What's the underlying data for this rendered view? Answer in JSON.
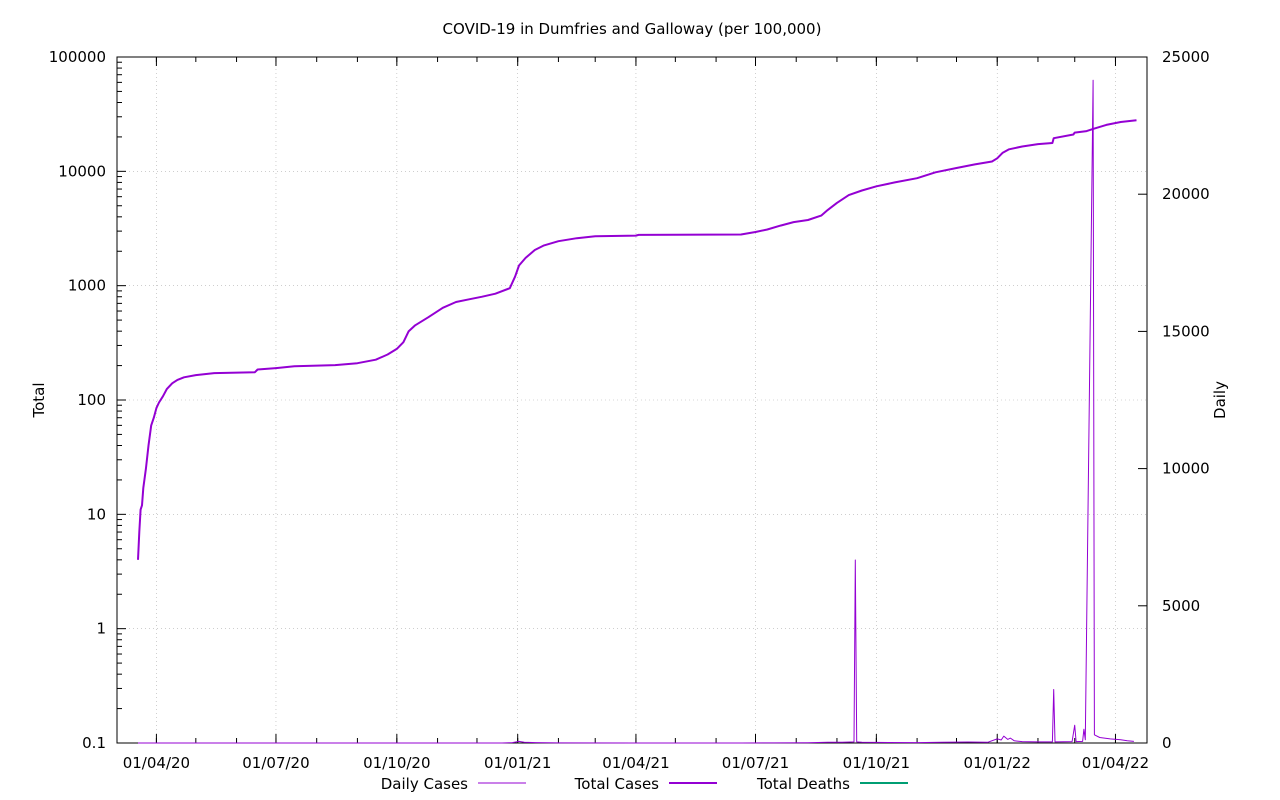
{
  "chart_data": {
    "type": "line",
    "title": "COVID-19 in Dumfries and Galloway (per 100,000)",
    "y_left_label": "Total",
    "y_right_label": "Daily",
    "y_left_scale": "log",
    "y_left_lim": [
      0.1,
      100000
    ],
    "y_left_ticks": [
      "0.1",
      "1",
      "10",
      "100",
      "1000",
      "10000",
      "100000"
    ],
    "y_right_lim": [
      0,
      25000
    ],
    "y_right_ticks": [
      "0",
      "5000",
      "10000",
      "15000",
      "20000",
      "25000"
    ],
    "x_lim": [
      "2020-03-02",
      "2022-04-25"
    ],
    "x_ticks": [
      {
        "date": "2020-04-01",
        "label": "01/04/20"
      },
      {
        "date": "2020-07-01",
        "label": "01/07/20"
      },
      {
        "date": "2020-10-01",
        "label": "01/10/20"
      },
      {
        "date": "2021-01-01",
        "label": "01/01/21"
      },
      {
        "date": "2021-04-01",
        "label": "01/04/21"
      },
      {
        "date": "2021-07-01",
        "label": "01/07/21"
      },
      {
        "date": "2021-10-01",
        "label": "01/10/21"
      },
      {
        "date": "2022-01-01",
        "label": "01/01/22"
      },
      {
        "date": "2022-04-01",
        "label": "01/04/22"
      }
    ],
    "grid": true,
    "legend_position": "bottom",
    "colors": {
      "total_cases": "#9400d3",
      "daily_cases": "#9400d3",
      "total_deaths": "#009e73"
    },
    "series": [
      {
        "name": "Daily Cases",
        "axis": "right",
        "points": [
          [
            "2020-03-18",
            0
          ],
          [
            "2020-12-20",
            0
          ],
          [
            "2020-12-28",
            15
          ],
          [
            "2021-01-02",
            60
          ],
          [
            "2021-01-06",
            30
          ],
          [
            "2021-01-15",
            15
          ],
          [
            "2021-02-01",
            5
          ],
          [
            "2021-06-20",
            0
          ],
          [
            "2021-07-15",
            5
          ],
          [
            "2021-08-10",
            10
          ],
          [
            "2021-08-25",
            25
          ],
          [
            "2021-09-05",
            30
          ],
          [
            "2021-09-14",
            40
          ],
          [
            "2021-09-15",
            6670
          ],
          [
            "2021-09-16",
            40
          ],
          [
            "2021-09-20",
            30
          ],
          [
            "2021-10-10",
            20
          ],
          [
            "2021-11-01",
            15
          ],
          [
            "2021-11-20",
            25
          ],
          [
            "2021-12-10",
            35
          ],
          [
            "2021-12-25",
            30
          ],
          [
            "2022-01-01",
            150
          ],
          [
            "2022-01-04",
            110
          ],
          [
            "2022-01-06",
            250
          ],
          [
            "2022-01-09",
            130
          ],
          [
            "2022-01-11",
            180
          ],
          [
            "2022-01-14",
            80
          ],
          [
            "2022-01-20",
            50
          ],
          [
            "2022-02-01",
            40
          ],
          [
            "2022-02-12",
            40
          ],
          [
            "2022-02-13",
            1950
          ],
          [
            "2022-02-14",
            40
          ],
          [
            "2022-02-27",
            50
          ],
          [
            "2022-03-01",
            650
          ],
          [
            "2022-03-02",
            50
          ],
          [
            "2022-03-07",
            60
          ],
          [
            "2022-03-08",
            500
          ],
          [
            "2022-03-09",
            120
          ],
          [
            "2022-03-15",
            24150
          ],
          [
            "2022-03-16",
            300
          ],
          [
            "2022-03-20",
            200
          ],
          [
            "2022-03-28",
            150
          ],
          [
            "2022-04-05",
            120
          ],
          [
            "2022-04-10",
            80
          ],
          [
            "2022-04-15",
            60
          ]
        ]
      },
      {
        "name": "Total Cases",
        "axis": "left",
        "points": [
          [
            "2020-03-18",
            4
          ],
          [
            "2020-03-19",
            7
          ],
          [
            "2020-03-20",
            11
          ],
          [
            "2020-03-21",
            12
          ],
          [
            "2020-03-22",
            17
          ],
          [
            "2020-03-24",
            25
          ],
          [
            "2020-03-26",
            40
          ],
          [
            "2020-03-28",
            60
          ],
          [
            "2020-03-30",
            70
          ],
          [
            "2020-04-01",
            85
          ],
          [
            "2020-04-03",
            95
          ],
          [
            "2020-04-06",
            108
          ],
          [
            "2020-04-09",
            125
          ],
          [
            "2020-04-13",
            140
          ],
          [
            "2020-04-17",
            150
          ],
          [
            "2020-04-22",
            158
          ],
          [
            "2020-05-01",
            165
          ],
          [
            "2020-05-15",
            172
          ],
          [
            "2020-06-15",
            175
          ],
          [
            "2020-06-17",
            185
          ],
          [
            "2020-07-01",
            190
          ],
          [
            "2020-07-15",
            197
          ],
          [
            "2020-08-15",
            202
          ],
          [
            "2020-09-01",
            210
          ],
          [
            "2020-09-15",
            225
          ],
          [
            "2020-09-24",
            250
          ],
          [
            "2020-10-01",
            280
          ],
          [
            "2020-10-06",
            320
          ],
          [
            "2020-10-10",
            400
          ],
          [
            "2020-10-15",
            450
          ],
          [
            "2020-10-25",
            530
          ],
          [
            "2020-11-05",
            640
          ],
          [
            "2020-11-15",
            720
          ],
          [
            "2020-11-25",
            760
          ],
          [
            "2020-12-05",
            800
          ],
          [
            "2020-12-15",
            850
          ],
          [
            "2020-12-26",
            950
          ],
          [
            "2020-12-30",
            1200
          ],
          [
            "2021-01-02",
            1500
          ],
          [
            "2021-01-07",
            1750
          ],
          [
            "2021-01-14",
            2050
          ],
          [
            "2021-01-21",
            2250
          ],
          [
            "2021-02-01",
            2450
          ],
          [
            "2021-02-15",
            2600
          ],
          [
            "2021-03-01",
            2700
          ],
          [
            "2021-04-01",
            2740
          ],
          [
            "2021-04-03",
            2780
          ],
          [
            "2021-05-01",
            2790
          ],
          [
            "2021-06-20",
            2800
          ],
          [
            "2021-07-01",
            2950
          ],
          [
            "2021-07-10",
            3100
          ],
          [
            "2021-07-20",
            3350
          ],
          [
            "2021-07-30",
            3600
          ],
          [
            "2021-08-10",
            3750
          ],
          [
            "2021-08-20",
            4100
          ],
          [
            "2021-08-25",
            4600
          ],
          [
            "2021-09-01",
            5300
          ],
          [
            "2021-09-10",
            6200
          ],
          [
            "2021-09-20",
            6800
          ],
          [
            "2021-10-01",
            7400
          ],
          [
            "2021-10-15",
            8000
          ],
          [
            "2021-11-01",
            8700
          ],
          [
            "2021-11-15",
            9800
          ],
          [
            "2021-12-01",
            10700
          ],
          [
            "2021-12-15",
            11500
          ],
          [
            "2021-12-28",
            12200
          ],
          [
            "2022-01-01",
            13000
          ],
          [
            "2022-01-05",
            14500
          ],
          [
            "2022-01-10",
            15600
          ],
          [
            "2022-01-20",
            16500
          ],
          [
            "2022-02-01",
            17300
          ],
          [
            "2022-02-12",
            17700
          ],
          [
            "2022-02-13",
            19500
          ],
          [
            "2022-02-28",
            21000
          ],
          [
            "2022-03-01",
            21800
          ],
          [
            "2022-03-10",
            22500
          ],
          [
            "2022-03-15",
            23500
          ],
          [
            "2022-03-25",
            25500
          ],
          [
            "2022-04-05",
            27000
          ],
          [
            "2022-04-17",
            28000
          ]
        ]
      },
      {
        "name": "Total Deaths",
        "axis": "left",
        "points": []
      }
    ]
  }
}
